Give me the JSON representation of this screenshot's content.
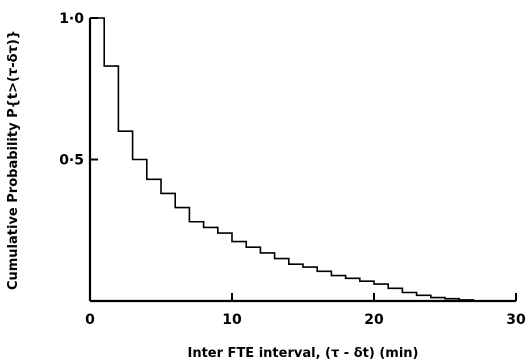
{
  "chart_data": {
    "type": "line",
    "step": true,
    "xlabel": "Inter FTE interval, (τ - δt) (min)",
    "ylabel": "Cumulative Probability P{t>(τ-δτ)}",
    "xlim": [
      0,
      30
    ],
    "ylim": [
      0,
      1
    ],
    "grid": false,
    "x_ticks": [
      {
        "value": 0,
        "label": "0"
      },
      {
        "value": 10,
        "label": "10"
      },
      {
        "value": 20,
        "label": "20"
      },
      {
        "value": 30,
        "label": "30"
      }
    ],
    "y_ticks": [
      {
        "value": 0.5,
        "label": "0·5"
      },
      {
        "value": 1.0,
        "label": "1·0"
      }
    ],
    "series": [
      {
        "color": "#000000",
        "x": [
          0,
          1,
          2,
          3,
          4,
          5,
          6,
          7,
          8,
          9,
          10,
          11,
          12,
          13,
          14,
          15,
          16,
          17,
          18,
          19,
          20,
          21,
          22,
          23,
          24,
          25,
          26,
          27
        ],
        "y": [
          1.0,
          0.83,
          0.6,
          0.5,
          0.43,
          0.38,
          0.33,
          0.28,
          0.26,
          0.24,
          0.21,
          0.19,
          0.17,
          0.15,
          0.13,
          0.12,
          0.105,
          0.09,
          0.08,
          0.07,
          0.06,
          0.045,
          0.03,
          0.02,
          0.012,
          0.008,
          0.004,
          0.0
        ]
      }
    ]
  }
}
